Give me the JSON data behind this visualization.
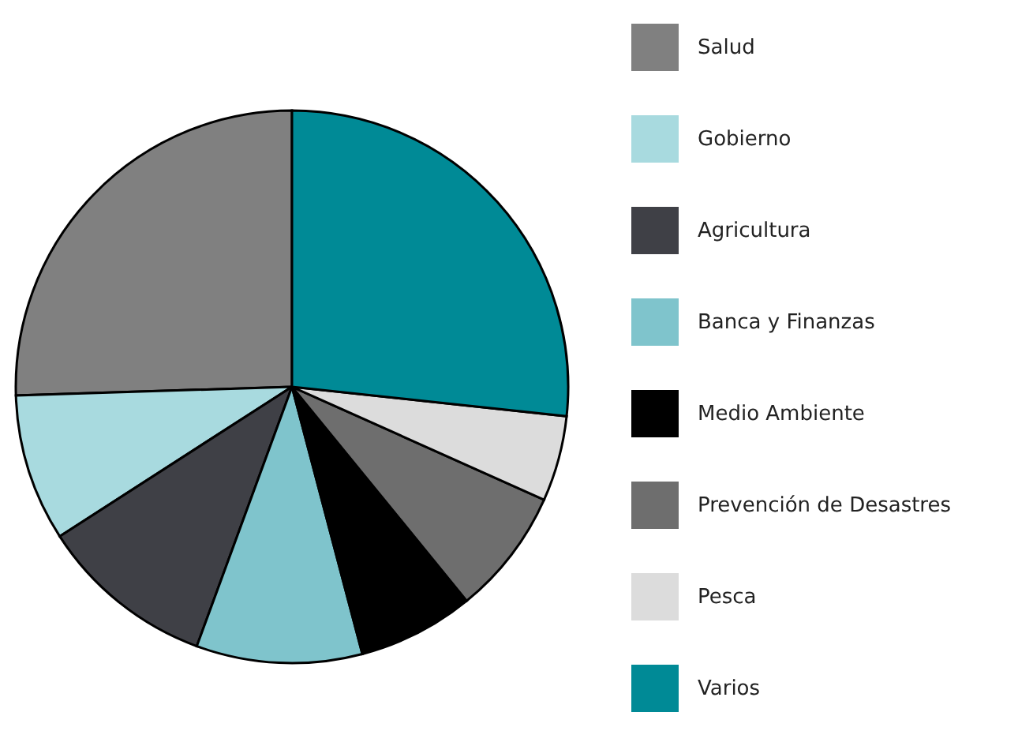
{
  "chart_data": {
    "type": "pie",
    "categories": [
      "Salud",
      "Gobierno",
      "Agricultura",
      "Banca y Finanzas",
      "Medio Ambiente",
      "Prevención de Desastres",
      "Pesca",
      "Varios"
    ],
    "values": [
      25.5,
      8.6,
      10.3,
      9.7,
      6.8,
      7.4,
      5,
      26.7
    ],
    "colors": [
      "#808080",
      "#a8dadf",
      "#3f4046",
      "#7fc4cc",
      "#000000",
      "#6e6e6e",
      "#dcdcdc",
      "#008a96"
    ],
    "legend": "right"
  }
}
